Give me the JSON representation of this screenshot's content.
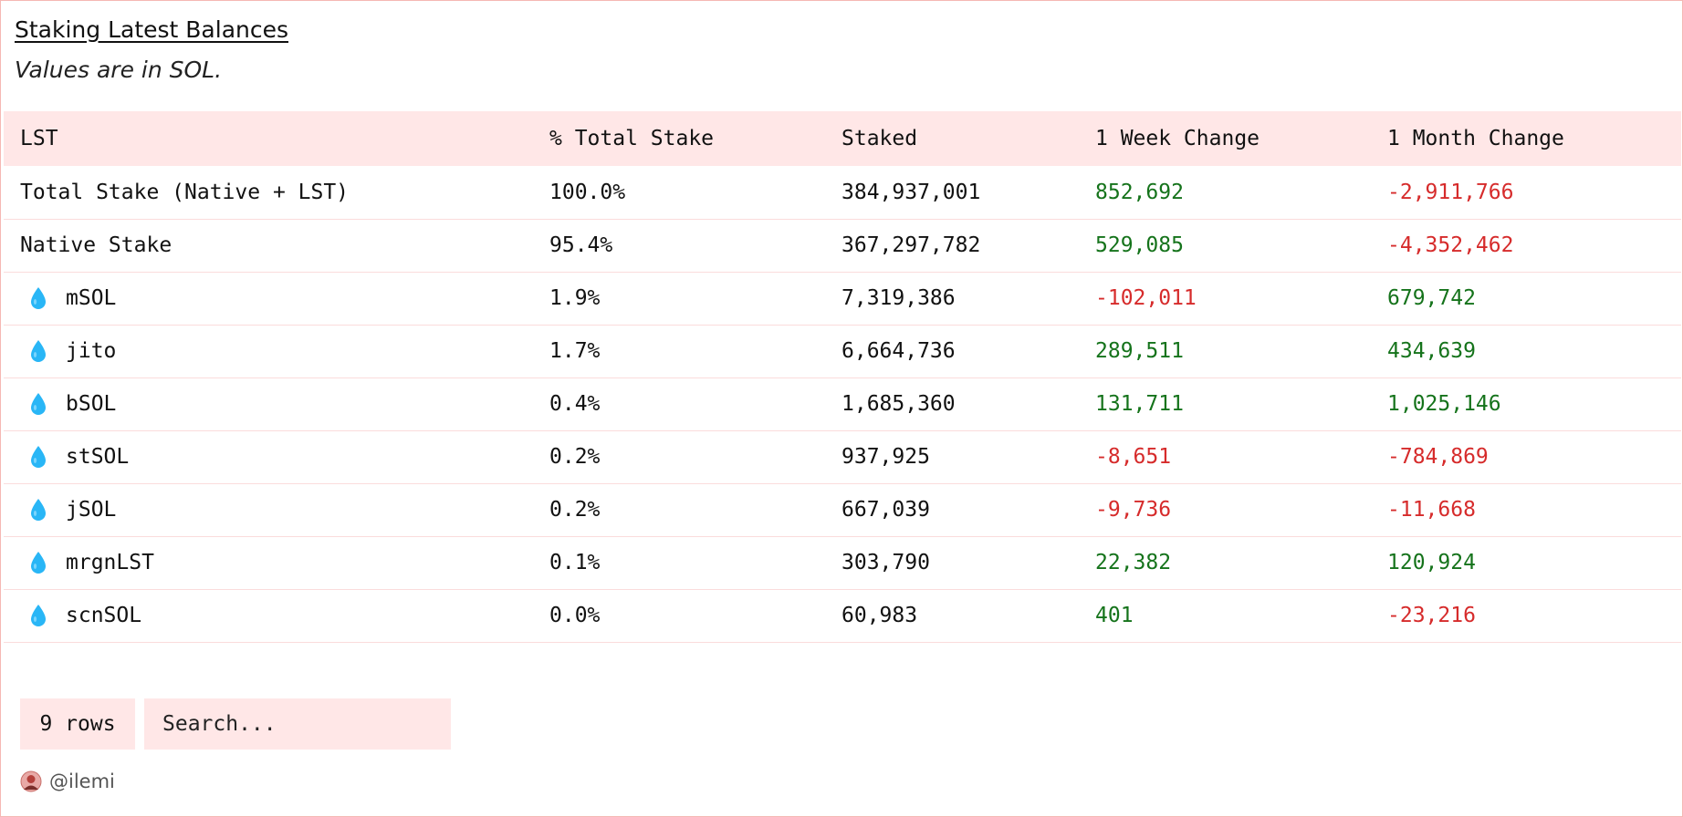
{
  "header": {
    "title": "Staking Latest Balances",
    "subtitle": "Values are in SOL."
  },
  "table": {
    "columns": [
      "LST",
      "% Total Stake",
      "Staked",
      "1 Week Change",
      "1 Month Change"
    ],
    "rows": [
      {
        "name": "Total Stake (Native + LST)",
        "icon": "",
        "pct": "100.0%",
        "staked": "384,937,001",
        "week": "852,692",
        "week_dir": "pos",
        "month": "-2,911,766",
        "month_dir": "neg"
      },
      {
        "name": "Native Stake",
        "icon": "",
        "pct": "95.4%",
        "staked": "367,297,782",
        "week": "529,085",
        "week_dir": "pos",
        "month": "-4,352,462",
        "month_dir": "neg"
      },
      {
        "name": "mSOL",
        "icon": "droplet-icon",
        "pct": "1.9%",
        "staked": "7,319,386",
        "week": "-102,011",
        "week_dir": "neg",
        "month": "679,742",
        "month_dir": "pos"
      },
      {
        "name": "jito",
        "icon": "droplet-icon",
        "pct": "1.7%",
        "staked": "6,664,736",
        "week": "289,511",
        "week_dir": "pos",
        "month": "434,639",
        "month_dir": "pos"
      },
      {
        "name": "bSOL",
        "icon": "droplet-icon",
        "pct": "0.4%",
        "staked": "1,685,360",
        "week": "131,711",
        "week_dir": "pos",
        "month": "1,025,146",
        "month_dir": "pos"
      },
      {
        "name": "stSOL",
        "icon": "droplet-icon",
        "pct": "0.2%",
        "staked": "937,925",
        "week": "-8,651",
        "week_dir": "neg",
        "month": "-784,869",
        "month_dir": "neg"
      },
      {
        "name": "jSOL",
        "icon": "droplet-icon",
        "pct": "0.2%",
        "staked": "667,039",
        "week": "-9,736",
        "week_dir": "neg",
        "month": "-11,668",
        "month_dir": "neg"
      },
      {
        "name": "mrgnLST",
        "icon": "droplet-icon",
        "pct": "0.1%",
        "staked": "303,790",
        "week": "22,382",
        "week_dir": "pos",
        "month": "120,924",
        "month_dir": "pos"
      },
      {
        "name": "scnSOL",
        "icon": "droplet-icon",
        "pct": "0.0%",
        "staked": "60,983",
        "week": "401",
        "week_dir": "pos",
        "month": "-23,216",
        "month_dir": "neg"
      }
    ]
  },
  "controls": {
    "rows_label": "9 rows",
    "search_placeholder": "Search..."
  },
  "footer": {
    "author": "@ilemi"
  },
  "colors": {
    "header_bg": "#ffe7e7",
    "border": "#f5b8b4",
    "positive": "#15731b",
    "negative": "#d62b2b",
    "droplet": "#29b6f6"
  }
}
